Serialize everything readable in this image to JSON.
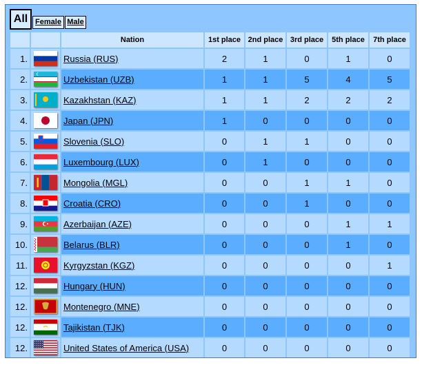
{
  "tabs": {
    "all": "All",
    "female": "Female",
    "male": "Male"
  },
  "headers": {
    "nation": "Nation",
    "p1": "1st place",
    "p2": "2nd place",
    "p3": "3rd place",
    "p5": "5th place",
    "p7": "7th place"
  },
  "rows": [
    {
      "rank": "1.",
      "nation": "Russia (RUS)",
      "flag": "russia-flag",
      "p1": "2",
      "p2": "1",
      "p3": "0",
      "p5": "1",
      "p7": "0"
    },
    {
      "rank": "2.",
      "nation": "Uzbekistan (UZB)",
      "flag": "uzbekistan-flag",
      "p1": "1",
      "p2": "1",
      "p3": "5",
      "p5": "4",
      "p7": "5"
    },
    {
      "rank": "3.",
      "nation": "Kazakhstan (KAZ)",
      "flag": "kazakhstan-flag",
      "p1": "1",
      "p2": "1",
      "p3": "2",
      "p5": "2",
      "p7": "2"
    },
    {
      "rank": "4.",
      "nation": "Japan (JPN)",
      "flag": "japan-flag",
      "p1": "1",
      "p2": "0",
      "p3": "0",
      "p5": "0",
      "p7": "0"
    },
    {
      "rank": "5.",
      "nation": "Slovenia (SLO)",
      "flag": "slovenia-flag",
      "p1": "0",
      "p2": "1",
      "p3": "1",
      "p5": "0",
      "p7": "0"
    },
    {
      "rank": "6.",
      "nation": "Luxembourg (LUX)",
      "flag": "luxembourg-flag",
      "p1": "0",
      "p2": "1",
      "p3": "0",
      "p5": "0",
      "p7": "0"
    },
    {
      "rank": "7.",
      "nation": "Mongolia (MGL)",
      "flag": "mongolia-flag",
      "p1": "0",
      "p2": "0",
      "p3": "1",
      "p5": "1",
      "p7": "0"
    },
    {
      "rank": "8.",
      "nation": "Croatia (CRO)",
      "flag": "croatia-flag",
      "p1": "0",
      "p2": "0",
      "p3": "1",
      "p5": "0",
      "p7": "0"
    },
    {
      "rank": "9.",
      "nation": "Azerbaijan (AZE)",
      "flag": "azerbaijan-flag",
      "p1": "0",
      "p2": "0",
      "p3": "0",
      "p5": "1",
      "p7": "1"
    },
    {
      "rank": "10.",
      "nation": "Belarus (BLR)",
      "flag": "belarus-flag",
      "p1": "0",
      "p2": "0",
      "p3": "0",
      "p5": "1",
      "p7": "0"
    },
    {
      "rank": "11.",
      "nation": "Kyrgyzstan (KGZ)",
      "flag": "kyrgyzstan-flag",
      "p1": "0",
      "p2": "0",
      "p3": "0",
      "p5": "0",
      "p7": "1"
    },
    {
      "rank": "12.",
      "nation": "Hungary (HUN)",
      "flag": "hungary-flag",
      "p1": "0",
      "p2": "0",
      "p3": "0",
      "p5": "0",
      "p7": "0"
    },
    {
      "rank": "12.",
      "nation": "Montenegro (MNE)",
      "flag": "montenegro-flag",
      "p1": "0",
      "p2": "0",
      "p3": "0",
      "p5": "0",
      "p7": "0"
    },
    {
      "rank": "12.",
      "nation": "Tajikistan (TJK)",
      "flag": "tajikistan-flag",
      "p1": "0",
      "p2": "0",
      "p3": "0",
      "p5": "0",
      "p7": "0"
    },
    {
      "rank": "12.",
      "nation": "United States of America (USA)",
      "flag": "usa-flag",
      "p1": "0",
      "p2": "0",
      "p3": "0",
      "p5": "0",
      "p7": "0"
    }
  ],
  "colors": {
    "panel": "#8ec6ff",
    "row_light": "#b5daff",
    "row_dark": "#5aadff",
    "header": "#cde6ff"
  }
}
